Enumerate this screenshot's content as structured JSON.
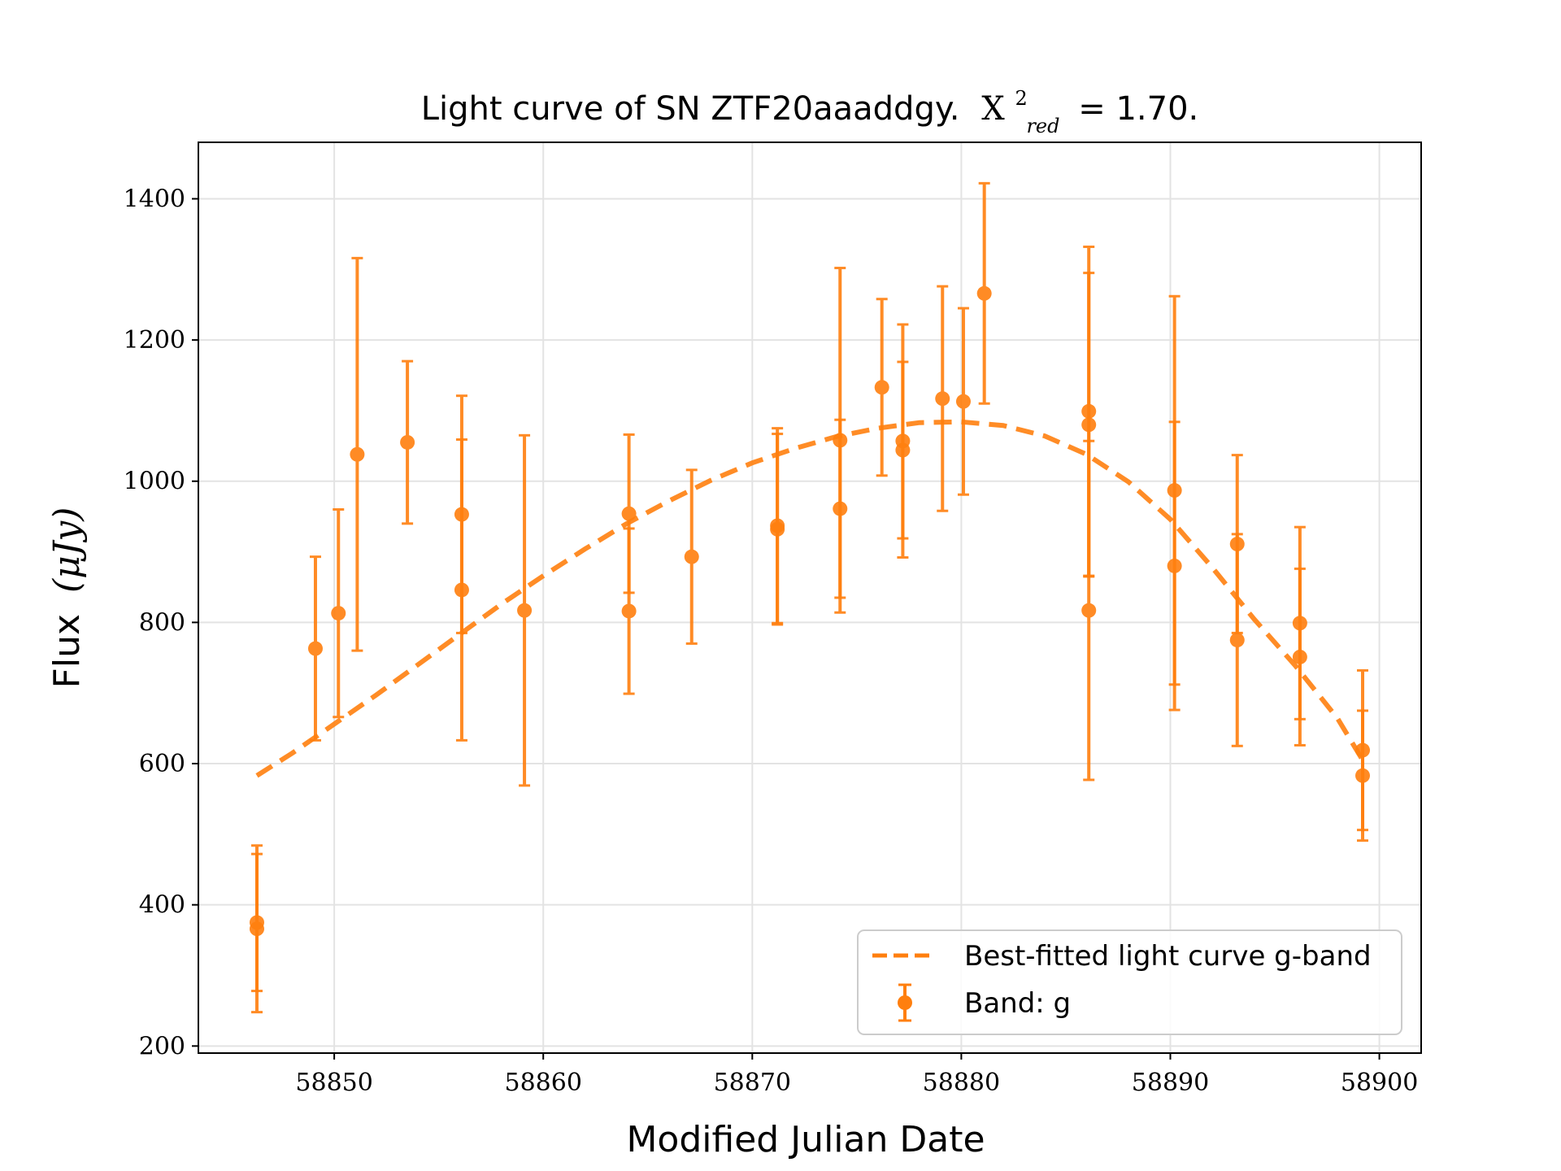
{
  "chart_data": {
    "type": "scatter",
    "title_text": "Light curve of SN ZTF20aaaddgy.",
    "title_stat_symbol": "X",
    "title_stat_sup": "2",
    "title_stat_sub": "red",
    "title_stat_value": "= 1.70.",
    "xlabel": "Modified Julian Date",
    "ylabel_text": "Flux",
    "ylabel_unit": "(μJy)",
    "xlim": [
      58843.5,
      58902
    ],
    "ylim": [
      190,
      1480
    ],
    "xticks": [
      58850,
      58860,
      58870,
      58880,
      58890,
      58900
    ],
    "yticks": [
      200,
      400,
      600,
      800,
      1000,
      1200,
      1400
    ],
    "grid": true,
    "legend_position": "lower right",
    "colors": {
      "series": "#ff7f0e"
    },
    "series": [
      {
        "name": "Best-fitted light curve g-band",
        "kind": "line",
        "style": "dashed",
        "x": [
          58846.3,
          58848,
          58850,
          58852,
          58854,
          58856,
          58858,
          58860,
          58862,
          58864,
          58866,
          58868,
          58870,
          58872,
          58874,
          58876,
          58878,
          58880,
          58882,
          58884,
          58886,
          58888,
          58890,
          58892,
          58894,
          58896,
          58898,
          58899.2
        ],
        "y": [
          583,
          615,
          656,
          697,
          740,
          783,
          826,
          866,
          904,
          940,
          972,
          1001,
          1026,
          1046,
          1063,
          1075,
          1083,
          1084,
          1079,
          1064,
          1038,
          999,
          946,
          878,
          805,
          738,
          664,
          605
        ]
      },
      {
        "name": "Band: g",
        "kind": "errorbar",
        "points": [
          {
            "x": 58846.3,
            "y": 375,
            "err": 97
          },
          {
            "x": 58846.3,
            "y": 366,
            "err": 118
          },
          {
            "x": 58849.1,
            "y": 763,
            "err": 130
          },
          {
            "x": 58850.2,
            "y": 813,
            "err": 147
          },
          {
            "x": 58851.1,
            "y": 1038,
            "err": 278
          },
          {
            "x": 58853.5,
            "y": 1055,
            "err": 115
          },
          {
            "x": 58856.1,
            "y": 953,
            "err": 168
          },
          {
            "x": 58856.1,
            "y": 846,
            "err": 213
          },
          {
            "x": 58859.1,
            "y": 817,
            "err": 248
          },
          {
            "x": 58864.1,
            "y": 954,
            "err": 112
          },
          {
            "x": 58864.1,
            "y": 816,
            "err": 117
          },
          {
            "x": 58867.1,
            "y": 893,
            "err": 123
          },
          {
            "x": 58871.2,
            "y": 937,
            "err": 138
          },
          {
            "x": 58871.2,
            "y": 932,
            "err": 135
          },
          {
            "x": 58874.2,
            "y": 1058,
            "err": 244
          },
          {
            "x": 58874.2,
            "y": 961,
            "err": 126
          },
          {
            "x": 58876.2,
            "y": 1133,
            "err": 125
          },
          {
            "x": 58877.2,
            "y": 1057,
            "err": 165
          },
          {
            "x": 58877.2,
            "y": 1044,
            "err": 125
          },
          {
            "x": 58879.1,
            "y": 1117,
            "err": 159
          },
          {
            "x": 58880.1,
            "y": 1113,
            "err": 132
          },
          {
            "x": 58881.1,
            "y": 1266,
            "err": 156
          },
          {
            "x": 58886.1,
            "y": 1099,
            "err": 233
          },
          {
            "x": 58886.1,
            "y": 1080,
            "err": 215
          },
          {
            "x": 58886.1,
            "y": 817,
            "err": 240
          },
          {
            "x": 58890.2,
            "y": 987,
            "err": 275
          },
          {
            "x": 58890.2,
            "y": 880,
            "err": 204
          },
          {
            "x": 58893.2,
            "y": 911,
            "err": 126
          },
          {
            "x": 58893.2,
            "y": 775,
            "err": 150
          },
          {
            "x": 58896.2,
            "y": 799,
            "err": 136
          },
          {
            "x": 58896.2,
            "y": 751,
            "err": 125
          },
          {
            "x": 58899.2,
            "y": 619,
            "err": 113
          },
          {
            "x": 58899.2,
            "y": 583,
            "err": 92
          }
        ]
      }
    ]
  }
}
